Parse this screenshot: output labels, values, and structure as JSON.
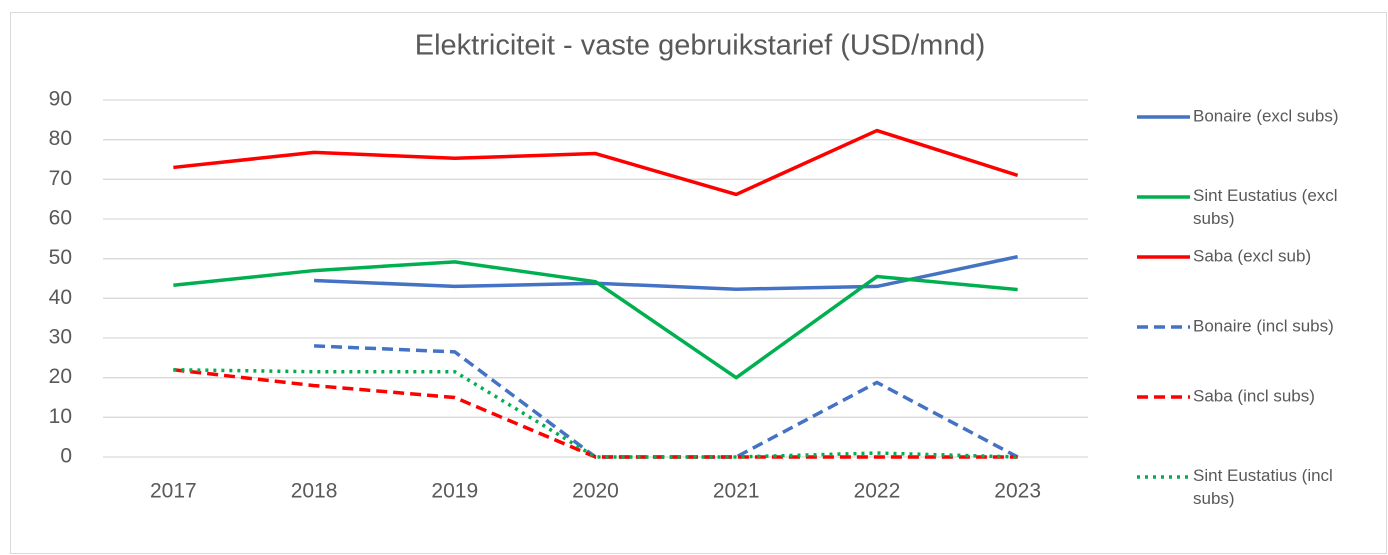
{
  "chart_data": {
    "type": "line",
    "title": "Elektriciteit - vaste gebruikstarief (USD/mnd)",
    "categories": [
      "2017",
      "2018",
      "2019",
      "2020",
      "2021",
      "2022",
      "2023"
    ],
    "ylim": [
      0,
      90
    ],
    "yticks": [
      0,
      10,
      20,
      30,
      40,
      50,
      60,
      70,
      80,
      90
    ],
    "grid": true,
    "legend": "right",
    "series": [
      {
        "name": "Bonaire (excl subs)",
        "color": "#4472c4",
        "style": "solid",
        "values": [
          null,
          44.5,
          43,
          43.8,
          42.3,
          43,
          50.5
        ]
      },
      {
        "name": "Sint Eustatius (excl subs)",
        "color": "#00b050",
        "style": "solid",
        "values": [
          43.3,
          47,
          49.2,
          44.2,
          20,
          45.5,
          42.2
        ]
      },
      {
        "name": "Saba (excl sub)",
        "color": "#ff0000",
        "style": "solid",
        "values": [
          73,
          76.8,
          75.3,
          76.5,
          66.2,
          82.3,
          71
        ]
      },
      {
        "name": "Bonaire (incl subs)",
        "color": "#4472c4",
        "style": "dashed",
        "values": [
          null,
          28,
          26.5,
          0,
          0,
          18.8,
          0
        ]
      },
      {
        "name": "Saba (incl subs)",
        "color": "#ff0000",
        "style": "dashed",
        "values": [
          22,
          18,
          15,
          0,
          0,
          0,
          0
        ]
      },
      {
        "name": "Sint Eustatius (incl subs)",
        "color": "#00b050",
        "style": "dotted",
        "values": [
          22,
          21.5,
          21.5,
          0,
          0,
          1,
          0
        ]
      }
    ]
  }
}
